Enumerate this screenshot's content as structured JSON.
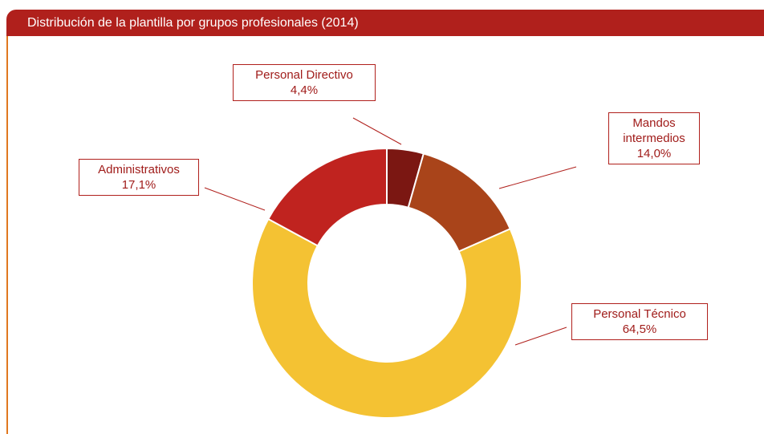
{
  "chart_data": {
    "type": "donut",
    "title": "Distribución de la plantilla por grupos profesionales (2014)",
    "categories": [
      "Personal Directivo",
      "Mandos intermedios",
      "Personal Técnico",
      "Administrativos"
    ],
    "values": [
      4.4,
      14.0,
      64.5,
      17.1
    ],
    "value_labels": [
      "4,4%",
      "14,0%",
      "64,5%",
      "17,1%"
    ],
    "colors": [
      "#7b1712",
      "#a9441a",
      "#f4c233",
      "#c0231f"
    ]
  }
}
